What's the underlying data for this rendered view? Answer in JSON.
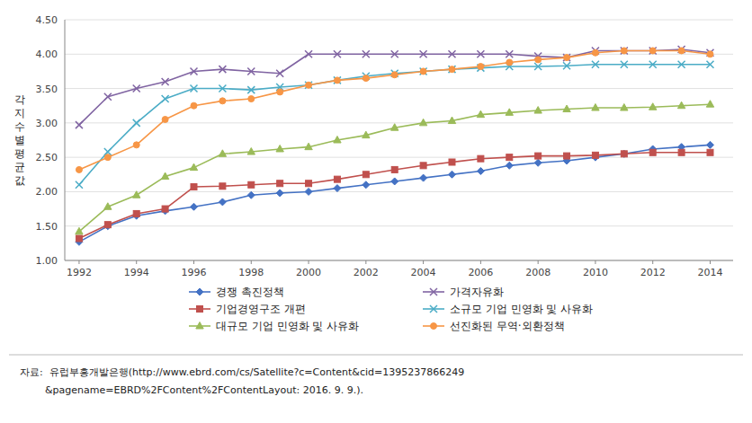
{
  "chart_data": {
    "type": "line",
    "y_label": "각지수별평균값",
    "x": [
      1992,
      1993,
      1994,
      1995,
      1996,
      1997,
      1998,
      1999,
      2000,
      2001,
      2002,
      2003,
      2004,
      2005,
      2006,
      2007,
      2008,
      2009,
      2010,
      2011,
      2012,
      2013,
      2014
    ],
    "series": [
      {
        "name": "경쟁 촉진정책",
        "color": "#4472C4",
        "marker": "diamond",
        "values": [
          1.27,
          1.5,
          1.65,
          1.72,
          1.78,
          1.85,
          1.95,
          1.98,
          2.0,
          2.05,
          2.1,
          2.15,
          2.2,
          2.25,
          2.3,
          2.38,
          2.42,
          2.45,
          2.5,
          2.55,
          2.62,
          2.65,
          2.68
        ]
      },
      {
        "name": "기업경영구조 개편",
        "color": "#C0504D",
        "marker": "square",
        "values": [
          1.32,
          1.52,
          1.68,
          1.75,
          2.07,
          2.08,
          2.1,
          2.12,
          2.12,
          2.18,
          2.25,
          2.32,
          2.38,
          2.43,
          2.48,
          2.5,
          2.52,
          2.52,
          2.53,
          2.55,
          2.57,
          2.57,
          2.57
        ]
      },
      {
        "name": "대규모 기업 민영화 및 사유화",
        "color": "#9BBB59",
        "marker": "triangle",
        "values": [
          1.42,
          1.78,
          1.95,
          2.22,
          2.35,
          2.55,
          2.58,
          2.62,
          2.65,
          2.75,
          2.82,
          2.93,
          3.0,
          3.03,
          3.12,
          3.15,
          3.18,
          3.2,
          3.22,
          3.22,
          3.23,
          3.25,
          3.27
        ]
      },
      {
        "name": "가격자유화",
        "color": "#8064A2",
        "marker": "x",
        "values": [
          2.97,
          3.38,
          3.5,
          3.6,
          3.75,
          3.78,
          3.75,
          3.72,
          4.0,
          4.0,
          4.0,
          4.0,
          4.0,
          4.0,
          4.0,
          4.0,
          3.97,
          3.95,
          4.05,
          4.05,
          4.05,
          4.07,
          4.02
        ]
      },
      {
        "name": "소규모 기업 민영화 및 사유화",
        "color": "#4BACC6",
        "marker": "x",
        "values": [
          2.1,
          2.58,
          3.0,
          3.35,
          3.5,
          3.5,
          3.48,
          3.52,
          3.55,
          3.62,
          3.68,
          3.72,
          3.75,
          3.78,
          3.8,
          3.82,
          3.82,
          3.83,
          3.85,
          3.85,
          3.85,
          3.85,
          3.85
        ]
      },
      {
        "name": "선진화된 무역·외환정책",
        "color": "#F79646",
        "marker": "circle",
        "values": [
          2.32,
          2.5,
          2.68,
          3.05,
          3.25,
          3.32,
          3.35,
          3.45,
          3.55,
          3.62,
          3.65,
          3.7,
          3.75,
          3.78,
          3.82,
          3.88,
          3.92,
          3.95,
          4.02,
          4.05,
          4.05,
          4.05,
          4.0
        ]
      }
    ],
    "xlim": [
      1991.5,
      2014.8
    ],
    "xticks": [
      1992,
      1994,
      1996,
      1998,
      2000,
      2002,
      2004,
      2006,
      2008,
      2010,
      2012,
      2014
    ],
    "ylim": [
      1.0,
      4.5
    ],
    "yticks": [
      {
        "value": 1.0,
        "label": "1.00"
      },
      {
        "value": 1.5,
        "label": "1.50"
      },
      {
        "value": 2.0,
        "label": "2.00"
      },
      {
        "value": 2.5,
        "label": "2.50"
      },
      {
        "value": 3.0,
        "label": "3.00"
      },
      {
        "value": 3.5,
        "label": "3.50"
      },
      {
        "value": 4.0,
        "label": "4.00"
      },
      {
        "value": 4.5,
        "label": "4.50"
      }
    ],
    "grid": true,
    "legend": "bottom",
    "annotations": [
      "자료:  유럽부흥개발은행(http://www.ebrd.com/cs/Satellite?c=Content&cid=1395237866249",
      "        &pagename=EBRD%2FContent%2FContentLayout: 2016. 9. 9.)."
    ]
  }
}
